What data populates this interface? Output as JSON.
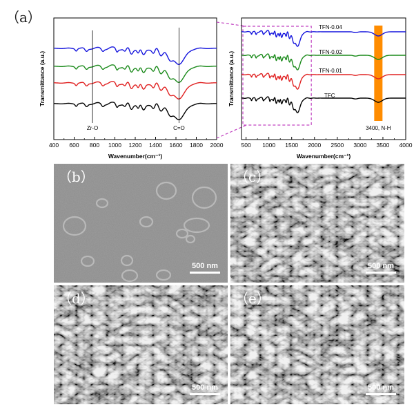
{
  "figure": {
    "panel_a_label": "（a）",
    "panel_b_label": "（b）",
    "panel_c_label": "（c）",
    "panel_d_label": "（d）",
    "panel_e_label": "（e）",
    "scale_bar_label": "500 nm"
  },
  "chart_data": [
    {
      "type": "line",
      "xlabel": "Wavenumber(cm⁻¹)",
      "ylabel": "Transmittance (a.u.)",
      "xlim": [
        400,
        2000
      ],
      "xticks": [
        400,
        600,
        800,
        1000,
        1200,
        1400,
        1600,
        1800,
        2000
      ],
      "grid": false,
      "annotations": [
        "Zr-O",
        "C=O"
      ],
      "marker_lines_x": [
        780,
        1630
      ],
      "series_colors": [
        "#000000",
        "#e02020",
        "#1a8a1a",
        "#1414dd"
      ]
    },
    {
      "type": "line",
      "xlabel": "Wavenumber(cm⁻¹)",
      "ylabel": "Transmittance (a.u.)",
      "xlim": [
        400,
        4000
      ],
      "xticks": [
        500,
        1000,
        1500,
        2000,
        2500,
        3000,
        3500,
        4000
      ],
      "grid": false,
      "series_labels": [
        "TFC",
        "TFN-0.01",
        "TFN-0.02",
        "TFN-0.04"
      ],
      "series_colors": [
        "#000000",
        "#e02020",
        "#1a8a1a",
        "#1414dd"
      ],
      "highlight_band": {
        "x_center": 3400,
        "label": "3400, N-H",
        "color": "#ff8c00"
      },
      "zoom_region": [
        400,
        1900
      ]
    }
  ]
}
